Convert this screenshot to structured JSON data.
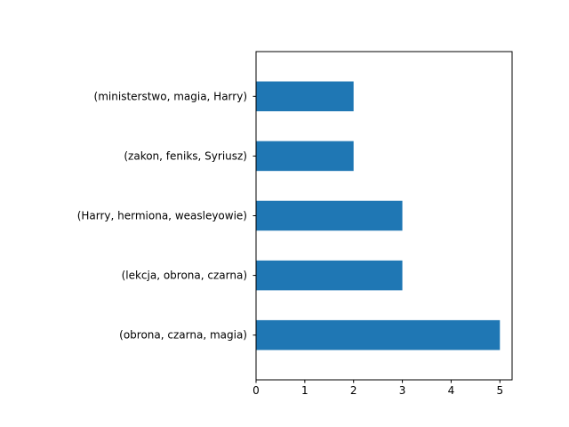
{
  "chart_data": {
    "type": "bar",
    "orientation": "horizontal",
    "categories": [
      "(obrona, czarna, magia)",
      "(lekcja, obrona, czarna)",
      "(Harry, hermiona, weasleyowie)",
      "(zakon, feniks, Syriusz)",
      "(ministerstwo, magia, Harry)"
    ],
    "values": [
      5,
      3,
      3,
      2,
      2
    ],
    "xlim": [
      0,
      5.25
    ],
    "xticks": [
      0,
      1,
      2,
      3,
      4,
      5
    ],
    "title": "",
    "xlabel": "",
    "ylabel": "",
    "grid": false,
    "bar_color": "#1f77b4"
  }
}
